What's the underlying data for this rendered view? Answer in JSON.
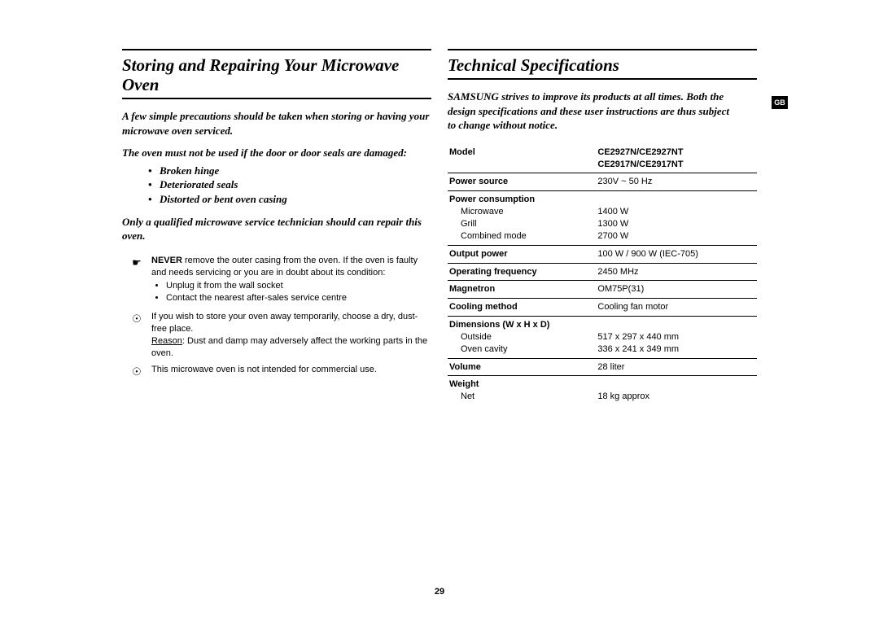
{
  "page_number": "29",
  "gb_badge": "GB",
  "left": {
    "title": "Storing and Repairing Your Microwave Oven",
    "intro": "A few simple precautions should be taken when storing or having your microwave oven serviced.",
    "warn": "The oven must not be used if the door or door seals are damaged:",
    "damage": [
      "Broken hinge",
      "Deteriorated seals",
      "Distorted or bent oven casing"
    ],
    "only": "Only a qualified microwave service technician should can repair this oven.",
    "never_bold": "NEVER",
    "never_rest": " remove the outer casing from the oven. If the oven is faulty and needs servicing or you are in doubt about its condition:",
    "sub_bullets": [
      "Unplug it from the wall socket",
      "Contact the nearest after-sales service centre"
    ],
    "store_note": "If you wish to store your oven away temporarily, choose a dry, dust-free place.",
    "reason_label": "Reason",
    "reason_rest": ": Dust and damp may adversely affect the working parts in the oven.",
    "commercial": "This microwave oven is not intended for commercial use."
  },
  "right": {
    "title": "Technical Specifications",
    "intro": "SAMSUNG strives to improve its products at all times. Both the design specifications and these user instructions are thus subject to change without notice.",
    "rows": {
      "model_label": "Model",
      "model_val1": "CE2927N/CE2927NT",
      "model_val2": "CE2917N/CE2917NT",
      "power_src_label": "Power source",
      "power_src_val": "230V ~ 50 Hz",
      "power_cons_label": "Power consumption",
      "microwave_label": "Microwave",
      "microwave_val": "1400 W",
      "grill_label": "Grill",
      "grill_val": "1300 W",
      "combined_label": "Combined mode",
      "combined_val": "2700 W",
      "output_label": "Output power",
      "output_val": "100 W / 900 W (IEC-705)",
      "freq_label": "Operating frequency",
      "freq_val": "2450 MHz",
      "mag_label": "Magnetron",
      "mag_val": "OM75P(31)",
      "cool_label": "Cooling method",
      "cool_val": "Cooling fan motor",
      "dim_label": "Dimensions (W x H x D)",
      "outside_label": "Outside",
      "outside_val": "517 x 297 x 440 mm",
      "cavity_label": "Oven cavity",
      "cavity_val": "336 x 241 x 349 mm",
      "vol_label": "Volume",
      "vol_val": "28 liter",
      "weight_label": "Weight",
      "net_label": "Net",
      "net_val": "18 kg approx"
    }
  }
}
